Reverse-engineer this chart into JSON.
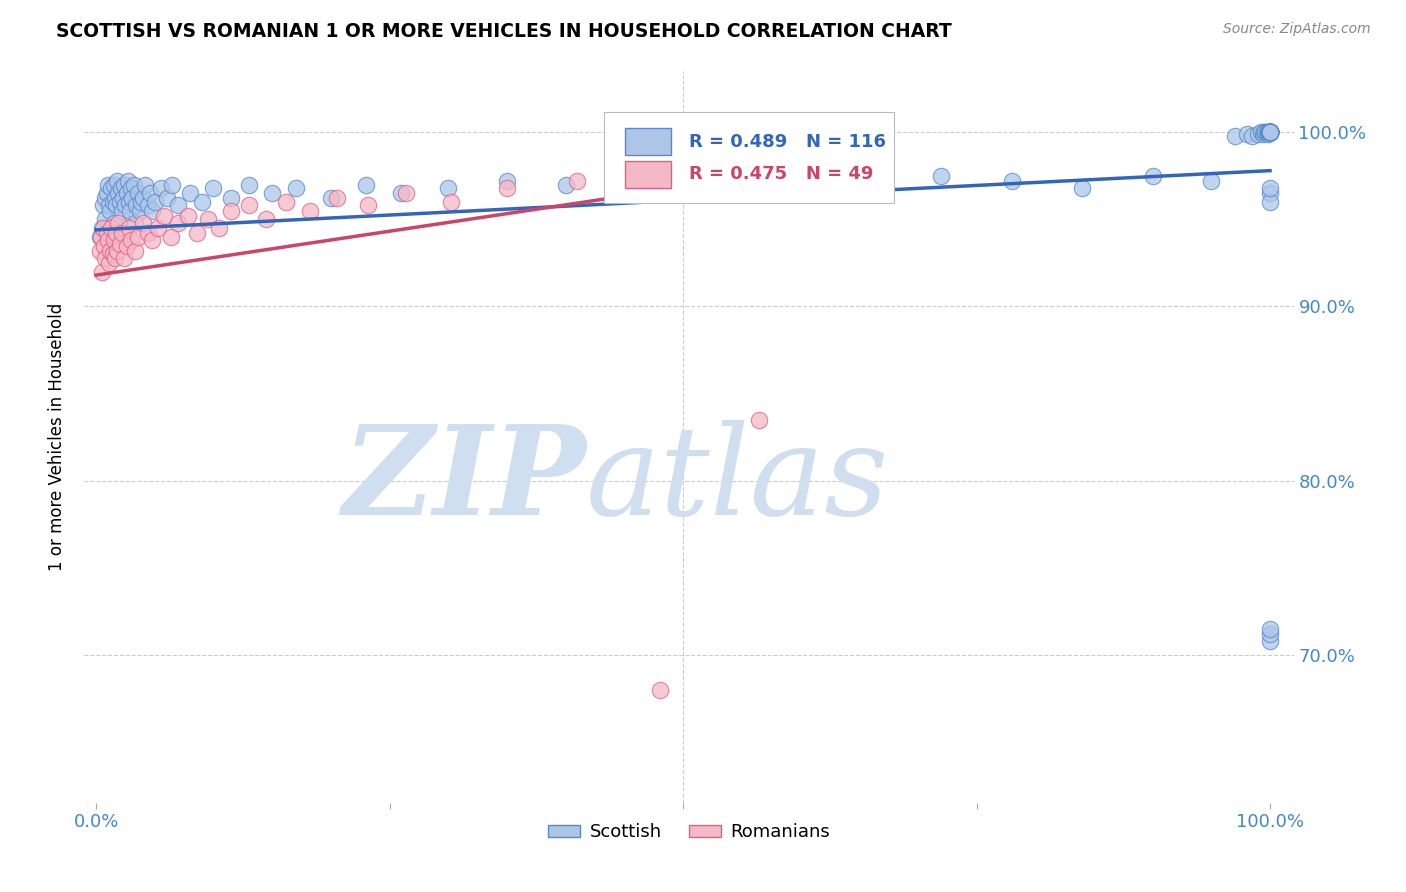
{
  "title": "SCOTTISH VS ROMANIAN 1 OR MORE VEHICLES IN HOUSEHOLD CORRELATION CHART",
  "source": "Source: ZipAtlas.com",
  "ylabel": "1 or more Vehicles in Household",
  "xlim": [
    -0.01,
    1.02
  ],
  "ylim": [
    0.615,
    1.035
  ],
  "ytick_values": [
    0.7,
    0.8,
    0.9,
    1.0
  ],
  "legend_R_scottish": "R = 0.489",
  "legend_N_scottish": "N = 116",
  "legend_R_romanians": "R = 0.475",
  "legend_N_romanians": "N = 49",
  "scottish_color": "#adc6e8",
  "scottish_edge_color": "#5588cc",
  "romanian_color": "#f5b8c8",
  "romanian_edge_color": "#e06080",
  "scottish_line_color": "#3366bb",
  "romanian_line_color": "#cc4466",
  "watermark_zip": "ZIP",
  "watermark_atlas": "atlas",
  "watermark_color": "#d0dff0",
  "scottish_x": [
    0.003,
    0.005,
    0.006,
    0.008,
    0.008,
    0.009,
    0.01,
    0.011,
    0.012,
    0.013,
    0.014,
    0.015,
    0.015,
    0.016,
    0.017,
    0.018,
    0.019,
    0.02,
    0.021,
    0.022,
    0.023,
    0.024,
    0.025,
    0.026,
    0.027,
    0.028,
    0.029,
    0.03,
    0.031,
    0.032,
    0.033,
    0.034,
    0.036,
    0.037,
    0.038,
    0.04,
    0.042,
    0.044,
    0.046,
    0.048,
    0.05,
    0.055,
    0.06,
    0.065,
    0.07,
    0.08,
    0.09,
    0.1,
    0.115,
    0.13,
    0.15,
    0.17,
    0.2,
    0.23,
    0.26,
    0.3,
    0.35,
    0.4,
    0.46,
    0.52,
    0.6,
    0.66,
    0.72,
    0.78,
    0.84,
    0.9,
    0.95,
    0.97,
    0.98,
    0.985,
    0.99,
    0.992,
    0.994,
    0.995,
    0.996,
    0.997,
    0.998,
    0.998,
    0.999,
    0.999,
    1.0,
    1.0,
    1.0,
    1.0,
    1.0,
    1.0,
    1.0,
    1.0,
    1.0,
    1.0,
    1.0,
    1.0,
    1.0,
    1.0,
    1.0,
    1.0,
    1.0,
    1.0,
    1.0,
    1.0,
    1.0,
    1.0,
    1.0,
    1.0,
    1.0,
    1.0,
    1.0,
    1.0,
    1.0,
    1.0,
    1.0,
    1.0,
    1.0,
    1.0,
    1.0,
    1.0
  ],
  "scottish_y": [
    0.94,
    0.945,
    0.958,
    0.962,
    0.95,
    0.965,
    0.97,
    0.958,
    0.955,
    0.968,
    0.96,
    0.97,
    0.948,
    0.962,
    0.958,
    0.972,
    0.965,
    0.96,
    0.968,
    0.955,
    0.962,
    0.97,
    0.958,
    0.965,
    0.972,
    0.96,
    0.955,
    0.968,
    0.962,
    0.97,
    0.948,
    0.958,
    0.965,
    0.955,
    0.96,
    0.962,
    0.97,
    0.958,
    0.965,
    0.955,
    0.96,
    0.968,
    0.962,
    0.97,
    0.958,
    0.965,
    0.96,
    0.968,
    0.962,
    0.97,
    0.965,
    0.968,
    0.962,
    0.97,
    0.965,
    0.968,
    0.972,
    0.97,
    0.968,
    0.975,
    0.972,
    0.97,
    0.975,
    0.972,
    0.968,
    0.975,
    0.972,
    0.998,
    0.999,
    0.998,
    0.999,
    1.0,
    0.999,
    1.0,
    1.0,
    1.0,
    0.999,
    1.0,
    1.0,
    1.0,
    1.0,
    1.0,
    1.0,
    1.0,
    1.0,
    1.0,
    1.0,
    1.0,
    1.0,
    1.0,
    1.0,
    1.0,
    1.0,
    1.0,
    1.0,
    1.0,
    1.0,
    1.0,
    1.0,
    1.0,
    1.0,
    1.0,
    1.0,
    1.0,
    1.0,
    1.0,
    1.0,
    1.0,
    1.0,
    1.0,
    0.708,
    0.712,
    0.715,
    0.965,
    0.96,
    0.968
  ],
  "romanian_x": [
    0.003,
    0.004,
    0.005,
    0.006,
    0.007,
    0.008,
    0.009,
    0.01,
    0.011,
    0.012,
    0.013,
    0.014,
    0.015,
    0.016,
    0.017,
    0.018,
    0.019,
    0.02,
    0.022,
    0.024,
    0.026,
    0.028,
    0.03,
    0.033,
    0.036,
    0.04,
    0.044,
    0.048,
    0.053,
    0.058,
    0.064,
    0.07,
    0.078,
    0.086,
    0.095,
    0.105,
    0.115,
    0.13,
    0.145,
    0.162,
    0.182,
    0.205,
    0.232,
    0.264,
    0.302,
    0.35,
    0.41,
    0.48,
    0.565
  ],
  "romanian_y": [
    0.932,
    0.94,
    0.92,
    0.945,
    0.935,
    0.928,
    0.942,
    0.938,
    0.925,
    0.932,
    0.945,
    0.93,
    0.938,
    0.928,
    0.942,
    0.932,
    0.948,
    0.936,
    0.942,
    0.928,
    0.935,
    0.945,
    0.938,
    0.932,
    0.94,
    0.948,
    0.942,
    0.938,
    0.945,
    0.952,
    0.94,
    0.948,
    0.952,
    0.942,
    0.95,
    0.945,
    0.955,
    0.958,
    0.95,
    0.96,
    0.955,
    0.962,
    0.958,
    0.965,
    0.96,
    0.968,
    0.972,
    0.68,
    0.835
  ],
  "scottish_trendline_x0": 0.0,
  "scottish_trendline_x1": 1.0,
  "scottish_trendline_y0": 0.944,
  "scottish_trendline_y1": 0.978,
  "romanian_trendline_x0": 0.0,
  "romanian_trendline_x1": 0.565,
  "romanian_trendline_y0": 0.918,
  "romanian_trendline_y1": 0.975,
  "grid_color": "#cccccc",
  "vline_x": 0.5
}
